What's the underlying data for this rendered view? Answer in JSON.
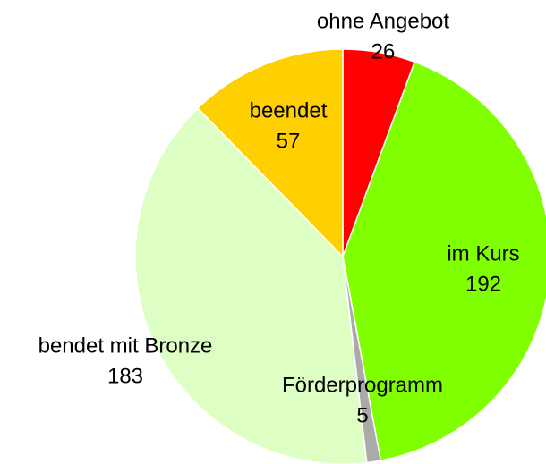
{
  "chart_data": {
    "type": "pie",
    "categories": [
      "ohne Angebot",
      "im Kurs",
      "Förderprogramm",
      "bendet mit Bronze",
      "beendet"
    ],
    "values": [
      26,
      192,
      5,
      183,
      57
    ],
    "colors": [
      "#ff0000",
      "#80ff00",
      "#aaaaaa",
      "#ddffc4",
      "#ffd000"
    ]
  }
}
